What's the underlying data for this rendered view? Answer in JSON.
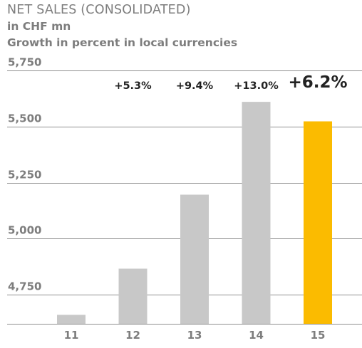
{
  "chart_data": {
    "type": "bar",
    "title": "NET SALES (CONSOLIDATED)",
    "subtitles": [
      "in CHF mn",
      "Growth in percent in local currencies"
    ],
    "categories": [
      "11",
      "12",
      "13",
      "14",
      "15"
    ],
    "values": [
      4660,
      4866,
      5196,
      5610,
      5523
    ],
    "growth_labels": [
      "",
      "+5.3%",
      "+9.4%",
      "+13.0%",
      "+6.2%"
    ],
    "highlight_index": 4,
    "yticks": [
      "4,750",
      "5,000",
      "5,250",
      "5,500",
      "5,750"
    ],
    "ytick_values": [
      4750,
      5000,
      5250,
      5500,
      5750
    ],
    "ylim": [
      4620,
      5750
    ],
    "grid": true,
    "colors": {
      "bar": "#c8c8c8",
      "highlight": "#fbbb00",
      "grid": "#8f8f8f",
      "text": "#7d7d7d",
      "label": "#222222"
    }
  }
}
